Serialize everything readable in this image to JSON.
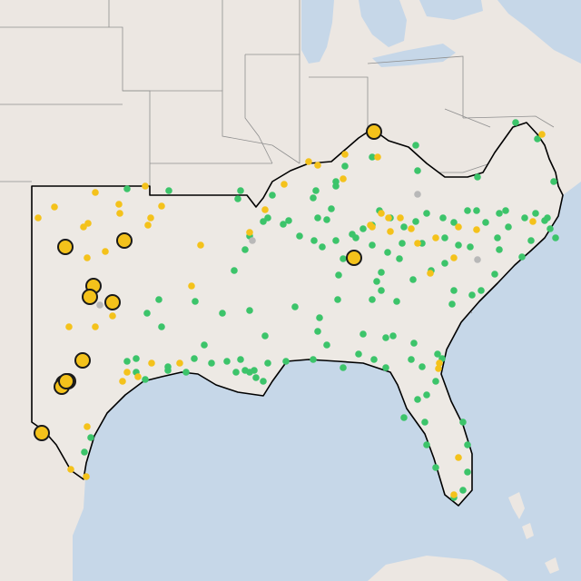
{
  "map": {
    "colors": {
      "water": "#c6d7e8",
      "land": "#ece7e2",
      "region_fill": "#ede9e4",
      "border": "#8f8f8f",
      "region_outline": "#000000",
      "marker_green": "#3cc46a",
      "marker_yellow": "#f4c21b",
      "marker_gray": "#b8b8b8",
      "marker_large_fill": "#f4c21b",
      "marker_large_stroke": "#1a1a1a"
    },
    "marker_counts": {
      "large_yellow": 13,
      "small_green": 143,
      "small_yellow": 54,
      "small_gray": 4
    },
    "legend": null
  }
}
